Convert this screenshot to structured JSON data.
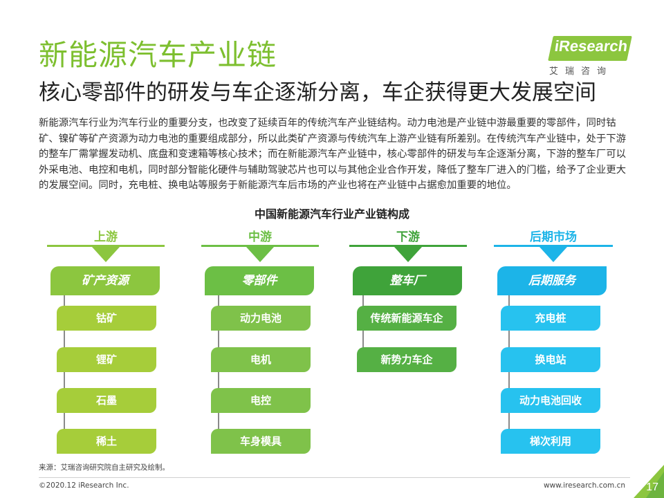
{
  "header": {
    "title": "新能源汽车产业链",
    "subtitle": "核心零部件的研发与车企逐渐分离，车企获得更大发展空间"
  },
  "logo": {
    "brand": "iResearch",
    "cn": "艾瑞咨询",
    "color": "#8cc63f"
  },
  "body_text": "新能源汽车行业为汽车行业的重要分支，也改变了延续百年的传统汽车产业链结构。动力电池是产业链中游最重要的零部件，同时钴矿、镍矿等矿产资源为动力电池的重要组成部分，所以此类矿产资源与传统汽车上游产业链有所差别。在传统汽车产业链中，处于下游的整车厂需掌握发动机、底盘和变速箱等核心技术；而在新能源汽车产业链中，核心零部件的研发与车企逐渐分离，下游的整车厂可以外采电池、电控和电机，同时部分智能化硬件与辅助驾驶芯片也可以与其他企业合作开发，降低了整车厂进入的门槛，给予了企业更大的发展空间。同时，充电桩、换电站等服务于新能源汽车后市场的产业也将在产业链中占据愈加重要的地位。",
  "diagram": {
    "title": "中国新能源汽车行业产业链构成",
    "columns": [
      {
        "stage": "上游",
        "category": "矿产资源",
        "color": "#8cc63f",
        "item_color": "#a6cd3a",
        "items": [
          "钴矿",
          "锂矿",
          "石墨",
          "稀土"
        ]
      },
      {
        "stage": "中游",
        "category": "零部件",
        "color": "#6cbf45",
        "item_color": "#7fc24a",
        "items": [
          "动力电池",
          "电机",
          "电控",
          "车身模具"
        ]
      },
      {
        "stage": "下游",
        "category": "整车厂",
        "color": "#3fa33a",
        "item_color": "#55b044",
        "items": [
          "传统新能源车企",
          "新势力车企"
        ]
      },
      {
        "stage": "后期市场",
        "category": "后期服务",
        "color": "#1cb4e8",
        "item_color": "#27c2ef",
        "items": [
          "充电桩",
          "换电站",
          "动力电池回收",
          "梯次利用"
        ]
      }
    ]
  },
  "footer": {
    "source": "来源：艾瑞咨询研究院自主研究及绘制。",
    "copyright": "©2020.12 iResearch Inc.",
    "website": "www.iresearch.com.cn",
    "page": "17"
  }
}
